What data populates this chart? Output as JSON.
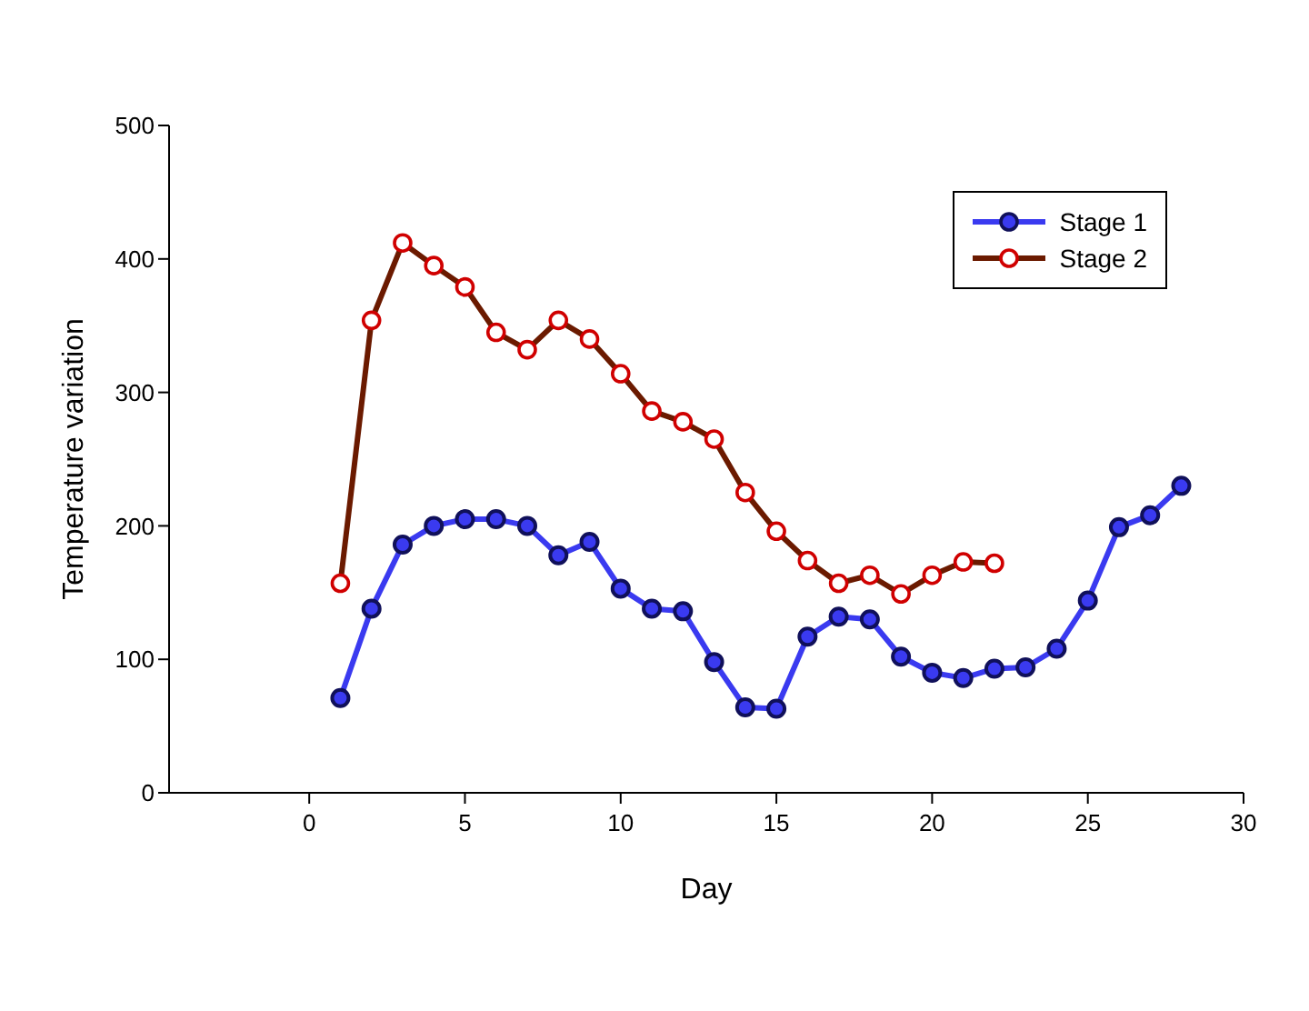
{
  "chart_data": {
    "type": "line",
    "xlabel": "Day",
    "ylabel": "Temperature variation",
    "x": [
      1,
      2,
      3,
      4,
      5,
      6,
      7,
      8,
      9,
      10,
      11,
      12,
      13,
      14,
      15,
      16,
      17,
      18,
      19,
      20,
      21,
      22,
      23,
      24,
      25,
      26,
      27,
      28
    ],
    "series": [
      {
        "name": "Stage 1",
        "color": "#3a3af0",
        "values": [
          71,
          138,
          186,
          200,
          205,
          205,
          200,
          178,
          188,
          153,
          138,
          136,
          98,
          64,
          63,
          117,
          132,
          130,
          102,
          90,
          86,
          93,
          94,
          108,
          144,
          199,
          208,
          230
        ]
      },
      {
        "name": "Stage 2",
        "color": "#6b1a00",
        "values": [
          157,
          354,
          412,
          395,
          379,
          345,
          332,
          354,
          340,
          314,
          286,
          278,
          265,
          225,
          196,
          174,
          157,
          163,
          149,
          163,
          173,
          172,
          null,
          null,
          null,
          null,
          null,
          null
        ]
      }
    ],
    "xlim": [
      -4.5,
      30
    ],
    "xticks": [
      0,
      5,
      10,
      15,
      20,
      25,
      30
    ],
    "ylim": [
      0,
      500
    ],
    "yticks": [
      0,
      100,
      200,
      300,
      400,
      500
    ],
    "grid": false,
    "legend": "top right",
    "marker": "circle"
  }
}
